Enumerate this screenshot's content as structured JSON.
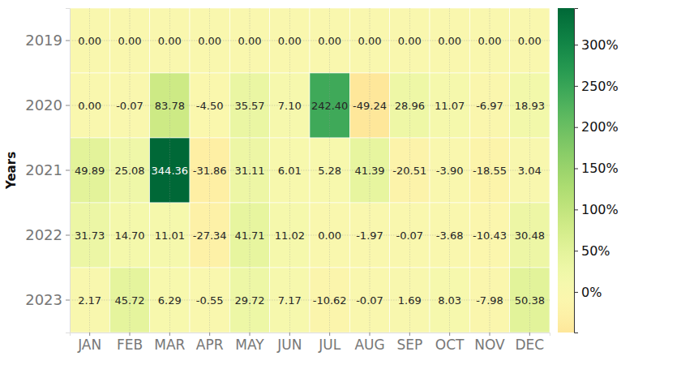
{
  "chart_data": {
    "type": "heatmap",
    "y_label": "Years",
    "categories": [
      "JAN",
      "FEB",
      "MAR",
      "APR",
      "MAY",
      "JUN",
      "JUL",
      "AUG",
      "SEP",
      "OCT",
      "NOV",
      "DEC"
    ],
    "y_categories": [
      "2019",
      "2020",
      "2021",
      "2022",
      "2023"
    ],
    "cells": [
      [
        0,
        0,
        0,
        0,
        0,
        0,
        0,
        0,
        0,
        0,
        0,
        0
      ],
      [
        0,
        -0.07,
        83.78,
        -4.5,
        35.57,
        7.1,
        242.4,
        -49.24,
        28.96,
        11.07,
        -6.97,
        18.93
      ],
      [
        49.89,
        25.08,
        344.36,
        -31.86,
        31.11,
        6.01,
        5.28,
        41.39,
        -20.51,
        -3.9,
        -18.55,
        3.04
      ],
      [
        31.73,
        14.7,
        11.01,
        -27.34,
        41.71,
        11.02,
        0,
        -1.97,
        -0.07,
        -3.68,
        -10.43,
        30.48
      ],
      [
        2.17,
        45.72,
        6.29,
        -0.55,
        29.72,
        7.17,
        -10.62,
        -0.07,
        1.69,
        8.03,
        -7.98,
        50.38
      ]
    ],
    "value_labels": [
      [
        "0.00",
        "0.00",
        "0.00",
        "0.00",
        "0.00",
        "0.00",
        "0.00",
        "0.00",
        "0.00",
        "0.00",
        "0.00",
        "0.00"
      ],
      [
        "0.00",
        "-0.07",
        "83.78",
        "-4.50",
        "35.57",
        "7.10",
        "242.40",
        "-49.24",
        "28.96",
        "11.07",
        "-6.97",
        "18.93"
      ],
      [
        "49.89",
        "25.08",
        "344.36",
        "-31.86",
        "31.11",
        "6.01",
        "5.28",
        "41.39",
        "-20.51",
        "-3.90",
        "-18.55",
        "3.04"
      ],
      [
        "31.73",
        "14.70",
        "11.01",
        "-27.34",
        "41.71",
        "11.02",
        "0.00",
        "-1.97",
        "-0.07",
        "-3.68",
        "-10.43",
        "30.48"
      ],
      [
        "2.17",
        "45.72",
        "6.29",
        "-0.55",
        "29.72",
        "7.17",
        "-10.62",
        "-0.07",
        "1.69",
        "8.03",
        "-7.98",
        "50.38"
      ]
    ],
    "color_range": [
      -49.24,
      344.36
    ],
    "color_ticks": [
      {
        "value": 0,
        "label": "0%"
      },
      {
        "value": 50,
        "label": "50%"
      },
      {
        "value": 100,
        "label": "100%"
      },
      {
        "value": 150,
        "label": "150%"
      },
      {
        "value": 200,
        "label": "200%"
      },
      {
        "value": 250,
        "label": "250%"
      },
      {
        "value": 300,
        "label": "300%"
      }
    ],
    "grid": true,
    "data_labels": true
  }
}
